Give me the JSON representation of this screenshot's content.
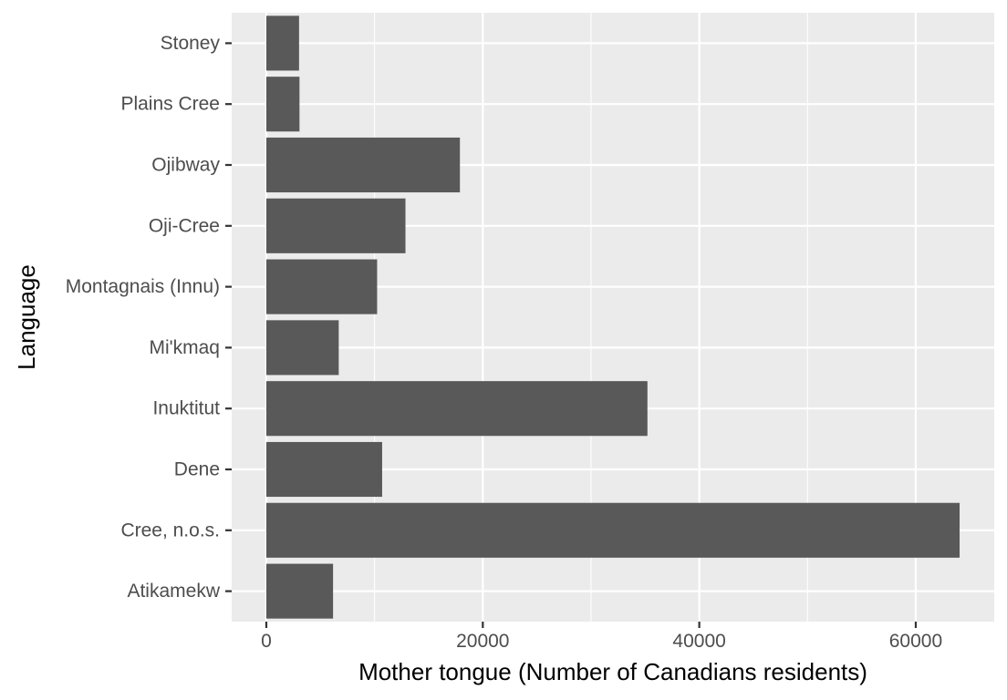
{
  "chart_data": {
    "type": "bar",
    "orientation": "horizontal",
    "categories": [
      "Stoney",
      "Plains Cree",
      "Ojibway",
      "Oji-Cree",
      "Montagnais (Innu)",
      "Mi'kmaq",
      "Inuktitut",
      "Dene",
      "Cree, n.o.s.",
      "Atikamekw"
    ],
    "values": [
      3025,
      3065,
      17885,
      12855,
      10235,
      6690,
      35210,
      10700,
      64050,
      6165
    ],
    "xlabel": "Mother tongue (Number of Canadians residents)",
    "ylabel": "Language",
    "xlim": [
      -3200,
      67250
    ],
    "xticks": [
      0,
      20000,
      40000,
      60000
    ],
    "xtick_labels": [
      "0",
      "20000",
      "40000",
      "60000"
    ],
    "grid": true,
    "colors": {
      "panel": "#ebebeb",
      "grid": "#ffffff",
      "bar": "#595959",
      "tick_text": "#4d4d4d",
      "tick_mark": "#333333",
      "title_text": "#000000"
    }
  }
}
